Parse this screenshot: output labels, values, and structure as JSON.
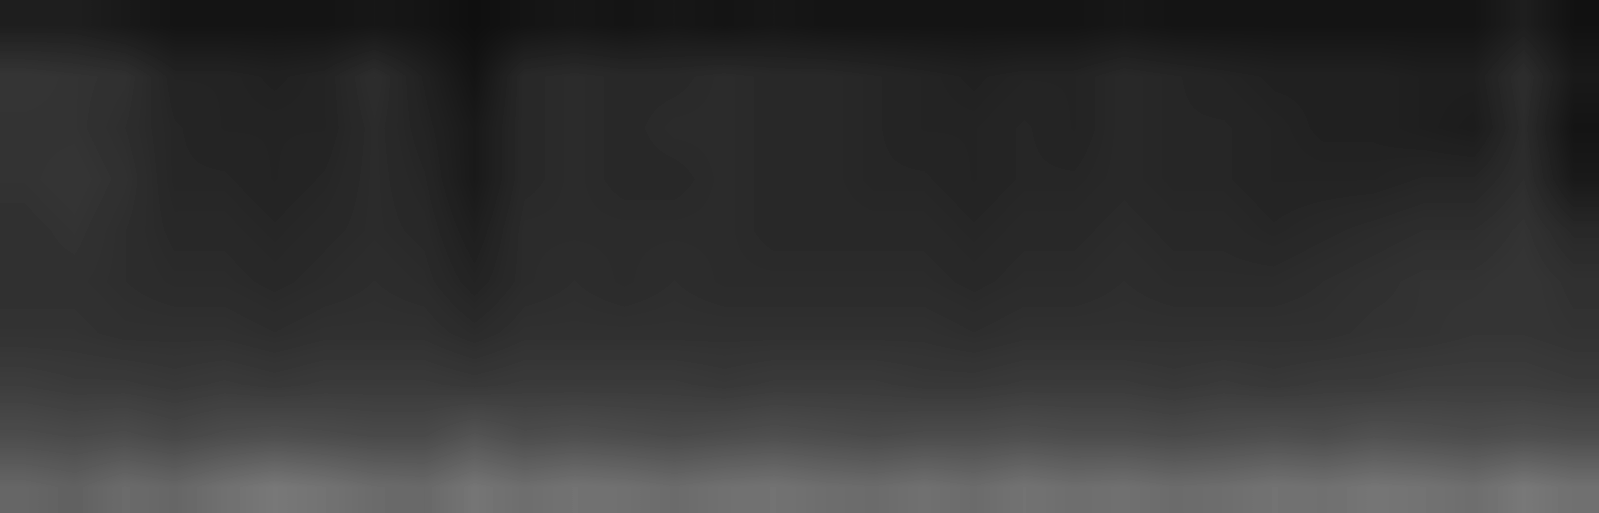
{
  "chart_data": {
    "type": "heatmap",
    "color": "gray",
    "tick_labels": false,
    "value_range": [
      0,
      1
    ],
    "cells": [
      [
        0.12,
        0.12,
        0.1,
        0.08,
        0.08,
        0.08,
        0.08,
        0.09,
        0.08,
        0.06,
        0.08,
        0.09,
        0.08,
        0.09,
        0.08,
        0.09,
        0.08,
        0.08,
        0.08,
        0.08,
        0.08,
        0.08,
        0.09,
        0.08,
        0.08,
        0.08,
        0.08,
        0.08,
        0.08,
        0.08,
        0.12,
        0.07
      ],
      [
        0.21,
        0.2,
        0.19,
        0.14,
        0.14,
        0.13,
        0.14,
        0.18,
        0.13,
        0.08,
        0.16,
        0.17,
        0.16,
        0.16,
        0.17,
        0.16,
        0.16,
        0.15,
        0.14,
        0.13,
        0.14,
        0.14,
        0.16,
        0.15,
        0.14,
        0.13,
        0.13,
        0.13,
        0.12,
        0.12,
        0.18,
        0.1
      ],
      [
        0.2,
        0.2,
        0.18,
        0.15,
        0.14,
        0.14,
        0.14,
        0.17,
        0.14,
        0.1,
        0.16,
        0.17,
        0.16,
        0.17,
        0.17,
        0.16,
        0.16,
        0.15,
        0.14,
        0.14,
        0.15,
        0.14,
        0.16,
        0.15,
        0.15,
        0.14,
        0.13,
        0.13,
        0.12,
        0.11,
        0.17,
        0.08
      ],
      [
        0.2,
        0.21,
        0.19,
        0.15,
        0.15,
        0.14,
        0.15,
        0.17,
        0.15,
        0.1,
        0.16,
        0.17,
        0.16,
        0.16,
        0.17,
        0.16,
        0.16,
        0.15,
        0.15,
        0.14,
        0.15,
        0.15,
        0.16,
        0.15,
        0.15,
        0.14,
        0.14,
        0.14,
        0.15,
        0.15,
        0.18,
        0.1
      ],
      [
        0.19,
        0.2,
        0.18,
        0.16,
        0.16,
        0.15,
        0.16,
        0.17,
        0.16,
        0.12,
        0.17,
        0.17,
        0.17,
        0.17,
        0.17,
        0.16,
        0.16,
        0.16,
        0.16,
        0.15,
        0.16,
        0.16,
        0.17,
        0.16,
        0.16,
        0.15,
        0.16,
        0.17,
        0.18,
        0.18,
        0.2,
        0.16
      ],
      [
        0.19,
        0.19,
        0.18,
        0.17,
        0.17,
        0.16,
        0.17,
        0.18,
        0.17,
        0.14,
        0.17,
        0.18,
        0.17,
        0.18,
        0.17,
        0.17,
        0.17,
        0.17,
        0.17,
        0.16,
        0.17,
        0.17,
        0.18,
        0.17,
        0.17,
        0.17,
        0.18,
        0.19,
        0.2,
        0.2,
        0.21,
        0.19
      ],
      [
        0.2,
        0.2,
        0.19,
        0.19,
        0.19,
        0.18,
        0.19,
        0.19,
        0.19,
        0.17,
        0.19,
        0.19,
        0.19,
        0.19,
        0.19,
        0.19,
        0.19,
        0.19,
        0.19,
        0.18,
        0.19,
        0.19,
        0.19,
        0.19,
        0.19,
        0.19,
        0.19,
        0.2,
        0.2,
        0.21,
        0.21,
        0.2
      ],
      [
        0.24,
        0.23,
        0.23,
        0.22,
        0.23,
        0.22,
        0.23,
        0.23,
        0.23,
        0.22,
        0.23,
        0.23,
        0.23,
        0.23,
        0.22,
        0.23,
        0.23,
        0.23,
        0.22,
        0.22,
        0.23,
        0.23,
        0.23,
        0.22,
        0.23,
        0.22,
        0.23,
        0.23,
        0.24,
        0.24,
        0.24,
        0.23
      ],
      [
        0.3,
        0.29,
        0.3,
        0.28,
        0.3,
        0.31,
        0.3,
        0.29,
        0.29,
        0.33,
        0.3,
        0.31,
        0.3,
        0.29,
        0.3,
        0.31,
        0.3,
        0.29,
        0.3,
        0.3,
        0.31,
        0.3,
        0.3,
        0.29,
        0.3,
        0.31,
        0.3,
        0.32,
        0.31,
        0.3,
        0.31,
        0.3
      ],
      [
        0.4,
        0.38,
        0.42,
        0.4,
        0.44,
        0.47,
        0.45,
        0.42,
        0.41,
        0.46,
        0.43,
        0.45,
        0.44,
        0.42,
        0.44,
        0.45,
        0.43,
        0.42,
        0.44,
        0.42,
        0.45,
        0.43,
        0.44,
        0.42,
        0.43,
        0.45,
        0.44,
        0.46,
        0.45,
        0.43,
        0.47,
        0.44
      ]
    ]
  }
}
